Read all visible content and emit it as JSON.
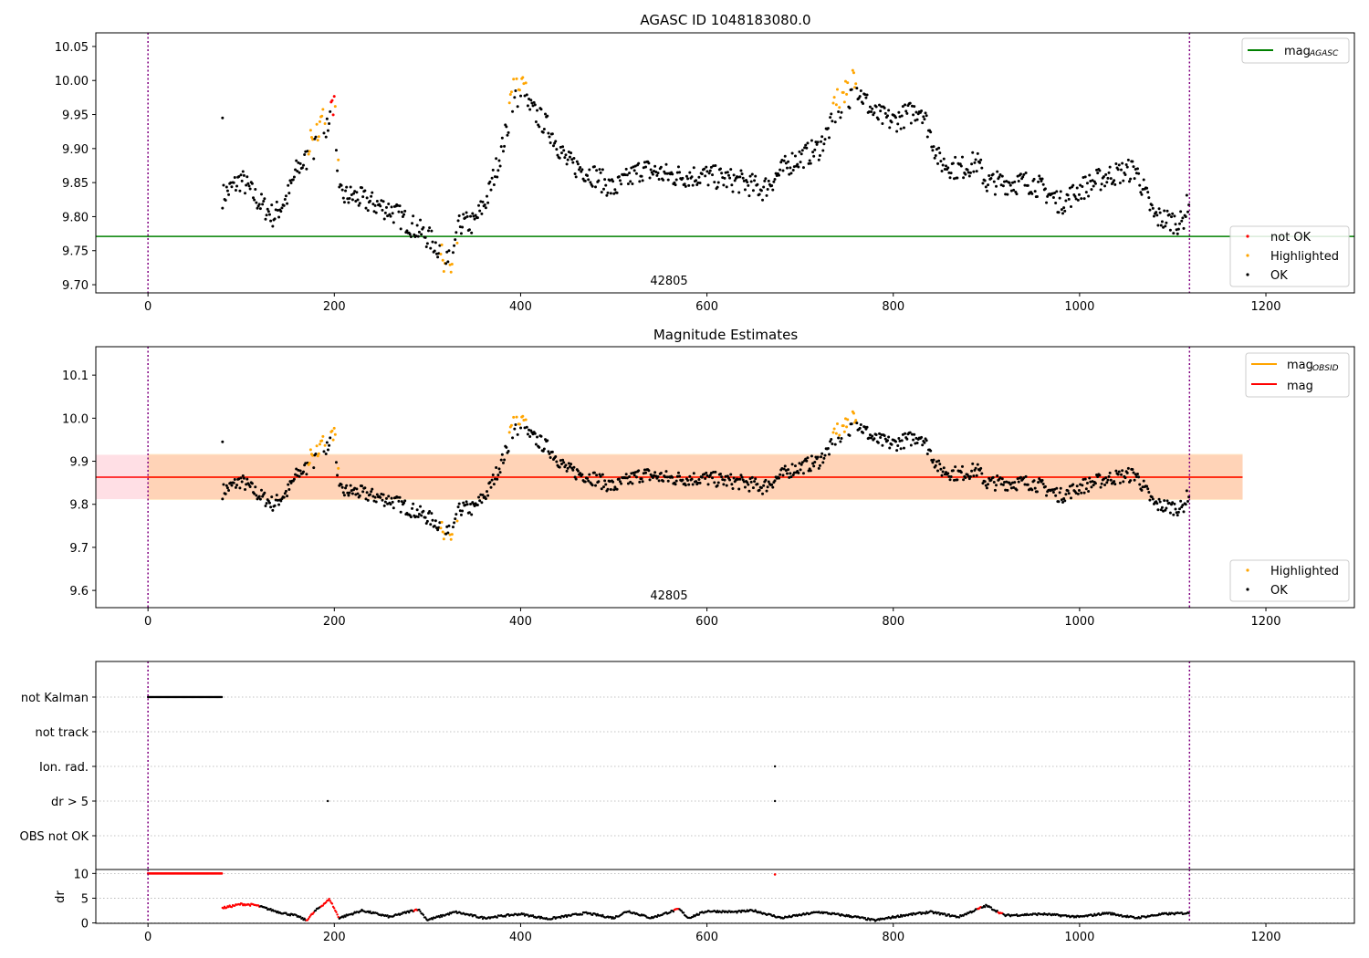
{
  "chart_data": [
    {
      "type": "scatter",
      "title": "AGASC ID 1048183080.0",
      "xlim": [
        -56,
        1295
      ],
      "ylim": [
        9.688,
        10.07
      ],
      "xticks": [
        0,
        200,
        400,
        600,
        800,
        1000,
        1200
      ],
      "yticks": [
        9.7,
        9.75,
        9.8,
        9.85,
        9.9,
        9.95,
        10.0,
        10.05
      ],
      "annotation": "42805",
      "mag_agasc": 9.771,
      "legend_line": {
        "label": "mag",
        "sub": "AGASC",
        "color": "#008000"
      },
      "legend_points": [
        {
          "label": "not OK",
          "color": "#ff0000"
        },
        {
          "label": "Highlighted",
          "color": "#ffa500"
        },
        {
          "label": "OK",
          "color": "#000000"
        }
      ],
      "vlines": [
        0,
        1118
      ]
    },
    {
      "type": "scatter",
      "title": "Magnitude Estimates",
      "xlim": [
        -56,
        1295
      ],
      "ylim": [
        9.56,
        10.166
      ],
      "xticks": [
        0,
        200,
        400,
        600,
        800,
        1000,
        1200
      ],
      "yticks": [
        9.6,
        9.7,
        9.8,
        9.9,
        10.0,
        10.1
      ],
      "annotation": "42805",
      "mag_mean": 9.863,
      "band_pink": [
        9.812,
        9.915
      ],
      "band_orange": [
        9.81,
        9.917
      ],
      "legend_lines": [
        {
          "label": "mag",
          "sub": "OBSID",
          "color": "#ffa500"
        },
        {
          "label": "mag",
          "sub": "",
          "color": "#ff0000"
        }
      ],
      "legend_points": [
        {
          "label": "Highlighted",
          "color": "#ffa500"
        },
        {
          "label": "OK",
          "color": "#000000"
        }
      ]
    },
    {
      "type": "scatter",
      "title": "",
      "categories": [
        "not Kalman",
        "not track",
        "Ion. rad.",
        "dr > 5",
        "OBS not OK"
      ],
      "flags": {
        "not Kalman": [
          [
            0,
            80
          ]
        ],
        "Ion. rad.": [
          [
            673,
            673
          ]
        ],
        "dr > 5": [
          [
            193,
            193
          ],
          [
            673,
            673
          ]
        ]
      }
    },
    {
      "type": "scatter",
      "ylabel": "dr",
      "ylim": [
        -0.08,
        10.8
      ],
      "yticks": [
        0,
        5,
        10
      ],
      "xticks": [
        0,
        200,
        400,
        600,
        800,
        1000,
        1200
      ],
      "dr_clipped": [
        [
          0,
          80,
          10
        ],
        [
          673,
          673,
          9.8
        ]
      ],
      "red_ranges": [
        [
          80,
          120
        ],
        [
          170,
          178
        ],
        [
          185,
          205
        ],
        [
          285,
          290
        ],
        [
          565,
          570
        ],
        [
          890,
          895
        ],
        [
          912,
          918
        ]
      ]
    }
  ],
  "series": {
    "t_range": [
      80,
      1118
    ],
    "trend": [
      [
        80,
        9.83
      ],
      [
        100,
        9.855
      ],
      [
        120,
        9.82
      ],
      [
        135,
        9.8
      ],
      [
        150,
        9.83
      ],
      [
        160,
        9.87
      ],
      [
        175,
        9.89
      ],
      [
        190,
        9.93
      ],
      [
        200,
        9.97
      ],
      [
        205,
        9.83
      ],
      [
        220,
        9.83
      ],
      [
        240,
        9.82
      ],
      [
        260,
        9.81
      ],
      [
        280,
        9.79
      ],
      [
        300,
        9.77
      ],
      [
        315,
        9.75
      ],
      [
        325,
        9.73
      ],
      [
        335,
        9.79
      ],
      [
        350,
        9.79
      ],
      [
        365,
        9.83
      ],
      [
        380,
        9.9
      ],
      [
        395,
        9.98
      ],
      [
        410,
        9.96
      ],
      [
        430,
        9.93
      ],
      [
        450,
        9.88
      ],
      [
        480,
        9.86
      ],
      [
        500,
        9.84
      ],
      [
        530,
        9.87
      ],
      [
        560,
        9.86
      ],
      [
        600,
        9.86
      ],
      [
        640,
        9.85
      ],
      [
        660,
        9.84
      ],
      [
        690,
        9.88
      ],
      [
        720,
        9.9
      ],
      [
        740,
        9.95
      ],
      [
        760,
        9.99
      ],
      [
        780,
        9.95
      ],
      [
        800,
        9.94
      ],
      [
        830,
        9.96
      ],
      [
        850,
        9.88
      ],
      [
        870,
        9.87
      ],
      [
        890,
        9.88
      ],
      [
        900,
        9.85
      ],
      [
        950,
        9.85
      ],
      [
        980,
        9.82
      ],
      [
        1000,
        9.84
      ],
      [
        1030,
        9.86
      ],
      [
        1060,
        9.87
      ],
      [
        1080,
        9.8
      ],
      [
        1110,
        9.79
      ],
      [
        1118,
        9.83
      ]
    ],
    "highlight_ranges": [
      [
        172,
        206
      ],
      [
        314,
        332
      ],
      [
        388,
        406
      ],
      [
        735,
        760
      ]
    ],
    "notok_ranges": [
      [
        196,
        200
      ]
    ],
    "dr_trend": [
      [
        80,
        3
      ],
      [
        100,
        3.8
      ],
      [
        115,
        3.6
      ],
      [
        140,
        2.2
      ],
      [
        160,
        1.4
      ],
      [
        170,
        0.5
      ],
      [
        180,
        2.5
      ],
      [
        195,
        4.8
      ],
      [
        205,
        1
      ],
      [
        230,
        2.5
      ],
      [
        260,
        1.2
      ],
      [
        290,
        2.8
      ],
      [
        300,
        0.6
      ],
      [
        330,
        2.2
      ],
      [
        360,
        1
      ],
      [
        400,
        1.8
      ],
      [
        430,
        0.8
      ],
      [
        470,
        2
      ],
      [
        500,
        1
      ],
      [
        515,
        2.4
      ],
      [
        540,
        1
      ],
      [
        570,
        2.8
      ],
      [
        580,
        1
      ],
      [
        600,
        2.4
      ],
      [
        630,
        2.2
      ],
      [
        650,
        2.5
      ],
      [
        680,
        1
      ],
      [
        720,
        2.2
      ],
      [
        760,
        1.2
      ],
      [
        780,
        0.5
      ],
      [
        810,
        1.5
      ],
      [
        840,
        2.2
      ],
      [
        870,
        1.2
      ],
      [
        900,
        3.5
      ],
      [
        920,
        1.5
      ],
      [
        960,
        1.8
      ],
      [
        1000,
        1.2
      ],
      [
        1030,
        2
      ],
      [
        1060,
        1
      ],
      [
        1090,
        1.8
      ],
      [
        1118,
        2
      ]
    ]
  }
}
